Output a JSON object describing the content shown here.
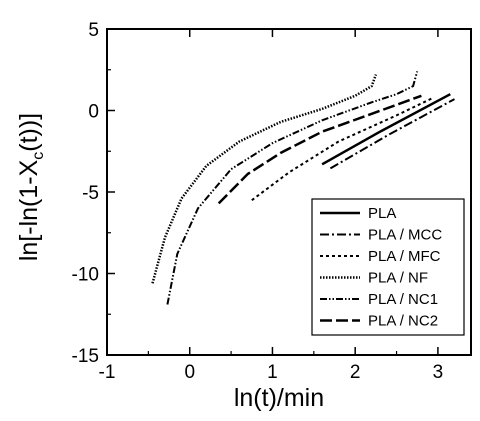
{
  "chart_data": {
    "type": "line",
    "title": "",
    "xlabel": "ln(t)/min",
    "ylabel_parts": [
      "ln[-ln(1-X",
      "c",
      "(t))]"
    ],
    "xlim": [
      -1,
      3.4
    ],
    "ylim": [
      -15,
      5
    ],
    "x_ticks": [
      -1,
      0,
      1,
      2,
      3
    ],
    "y_ticks": [
      5,
      0,
      -5,
      -10,
      -15
    ],
    "x_tick_labels": [
      "-1",
      "0",
      "1",
      "2",
      "3"
    ],
    "y_tick_labels": [
      "5",
      "0",
      "-5",
      "-10",
      "-15"
    ],
    "grid": false,
    "legend_position": "lower-right",
    "series": [
      {
        "name": "PLA",
        "dash": "",
        "stroke_width": 2.5,
        "points": [
          [
            1.6,
            -3.3
          ],
          [
            2.3,
            -1.3
          ],
          [
            3.15,
            1.0
          ]
        ]
      },
      {
        "name": "PLA / MCC",
        "dash": "9,3,2,3",
        "stroke_width": 2.0,
        "points": [
          [
            1.7,
            -3.55
          ],
          [
            2.4,
            -1.5
          ],
          [
            3.2,
            0.7
          ]
        ]
      },
      {
        "name": "PLA / MFC",
        "dash": "3,3",
        "stroke_width": 2.0,
        "points": [
          [
            0.75,
            -5.5
          ],
          [
            1.2,
            -3.8
          ],
          [
            1.8,
            -1.9
          ],
          [
            2.5,
            -0.3
          ],
          [
            2.95,
            0.8
          ]
        ]
      },
      {
        "name": "PLA / NF",
        "dash": "1.5,1.5",
        "stroke_width": 2.5,
        "points": [
          [
            -0.45,
            -10.6
          ],
          [
            -0.3,
            -7.8
          ],
          [
            -0.1,
            -5.4
          ],
          [
            0.2,
            -3.4
          ],
          [
            0.6,
            -1.9
          ],
          [
            1.1,
            -0.7
          ],
          [
            1.6,
            0.1
          ],
          [
            2.0,
            0.9
          ],
          [
            2.2,
            1.5
          ],
          [
            2.25,
            2.2
          ]
        ]
      },
      {
        "name": "PLA / NC1",
        "dash": "7,2,1.5,2,1.5,2",
        "stroke_width": 2.0,
        "points": [
          [
            -0.27,
            -11.9
          ],
          [
            -0.15,
            -8.8
          ],
          [
            0.1,
            -6.0
          ],
          [
            0.5,
            -3.6
          ],
          [
            1.0,
            -2.0
          ],
          [
            1.6,
            -0.6
          ],
          [
            2.2,
            0.5
          ],
          [
            2.5,
            1.0
          ],
          [
            2.7,
            1.5
          ],
          [
            2.75,
            2.4
          ]
        ]
      },
      {
        "name": "PLA / NC2",
        "dash": "12,4",
        "stroke_width": 2.5,
        "points": [
          [
            0.35,
            -5.7
          ],
          [
            0.7,
            -3.9
          ],
          [
            1.1,
            -2.6
          ],
          [
            1.6,
            -1.3
          ],
          [
            2.2,
            -0.2
          ],
          [
            2.8,
            0.9
          ]
        ]
      }
    ]
  }
}
